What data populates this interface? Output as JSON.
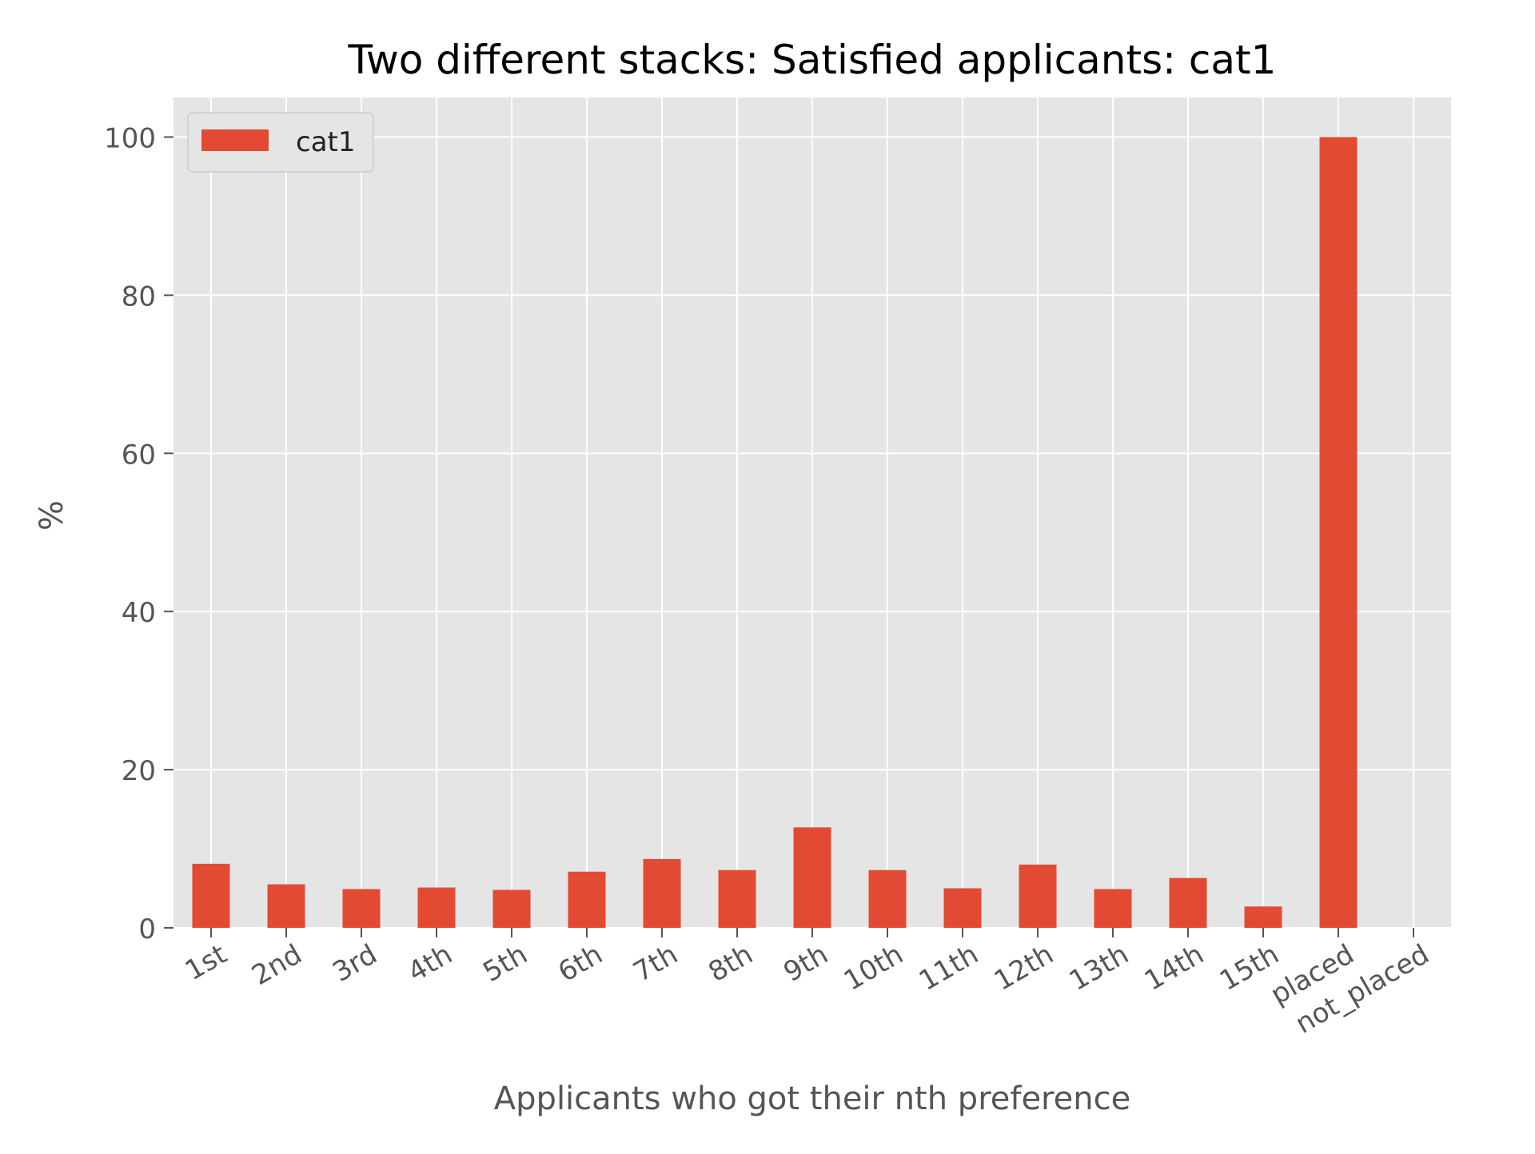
{
  "chart_data": {
    "type": "bar",
    "title": "Two different stacks: Satisfied applicants: cat1",
    "xlabel": "Applicants who got their nth preference",
    "ylabel": "%",
    "ylim": [
      0,
      105
    ],
    "yticks": [
      0,
      20,
      40,
      60,
      80,
      100
    ],
    "grid": true,
    "legend_position": "top-left",
    "categories": [
      "1st",
      "2nd",
      "3rd",
      "4th",
      "5th",
      "6th",
      "7th",
      "8th",
      "9th",
      "10th",
      "11th",
      "12th",
      "13th",
      "14th",
      "15th",
      "placed",
      "not_placed"
    ],
    "series": [
      {
        "name": "cat1",
        "color": "#E24A33",
        "values": [
          8.1,
          5.5,
          4.9,
          5.1,
          4.8,
          7.1,
          8.7,
          7.3,
          12.7,
          7.3,
          5.0,
          8.0,
          4.9,
          6.3,
          2.7,
          100.0,
          0.0
        ]
      }
    ],
    "colors": {
      "plot_background": "#E5E5E5",
      "grid": "#FFFFFF",
      "tick_text": "#555555",
      "title_text": "#000000"
    }
  }
}
